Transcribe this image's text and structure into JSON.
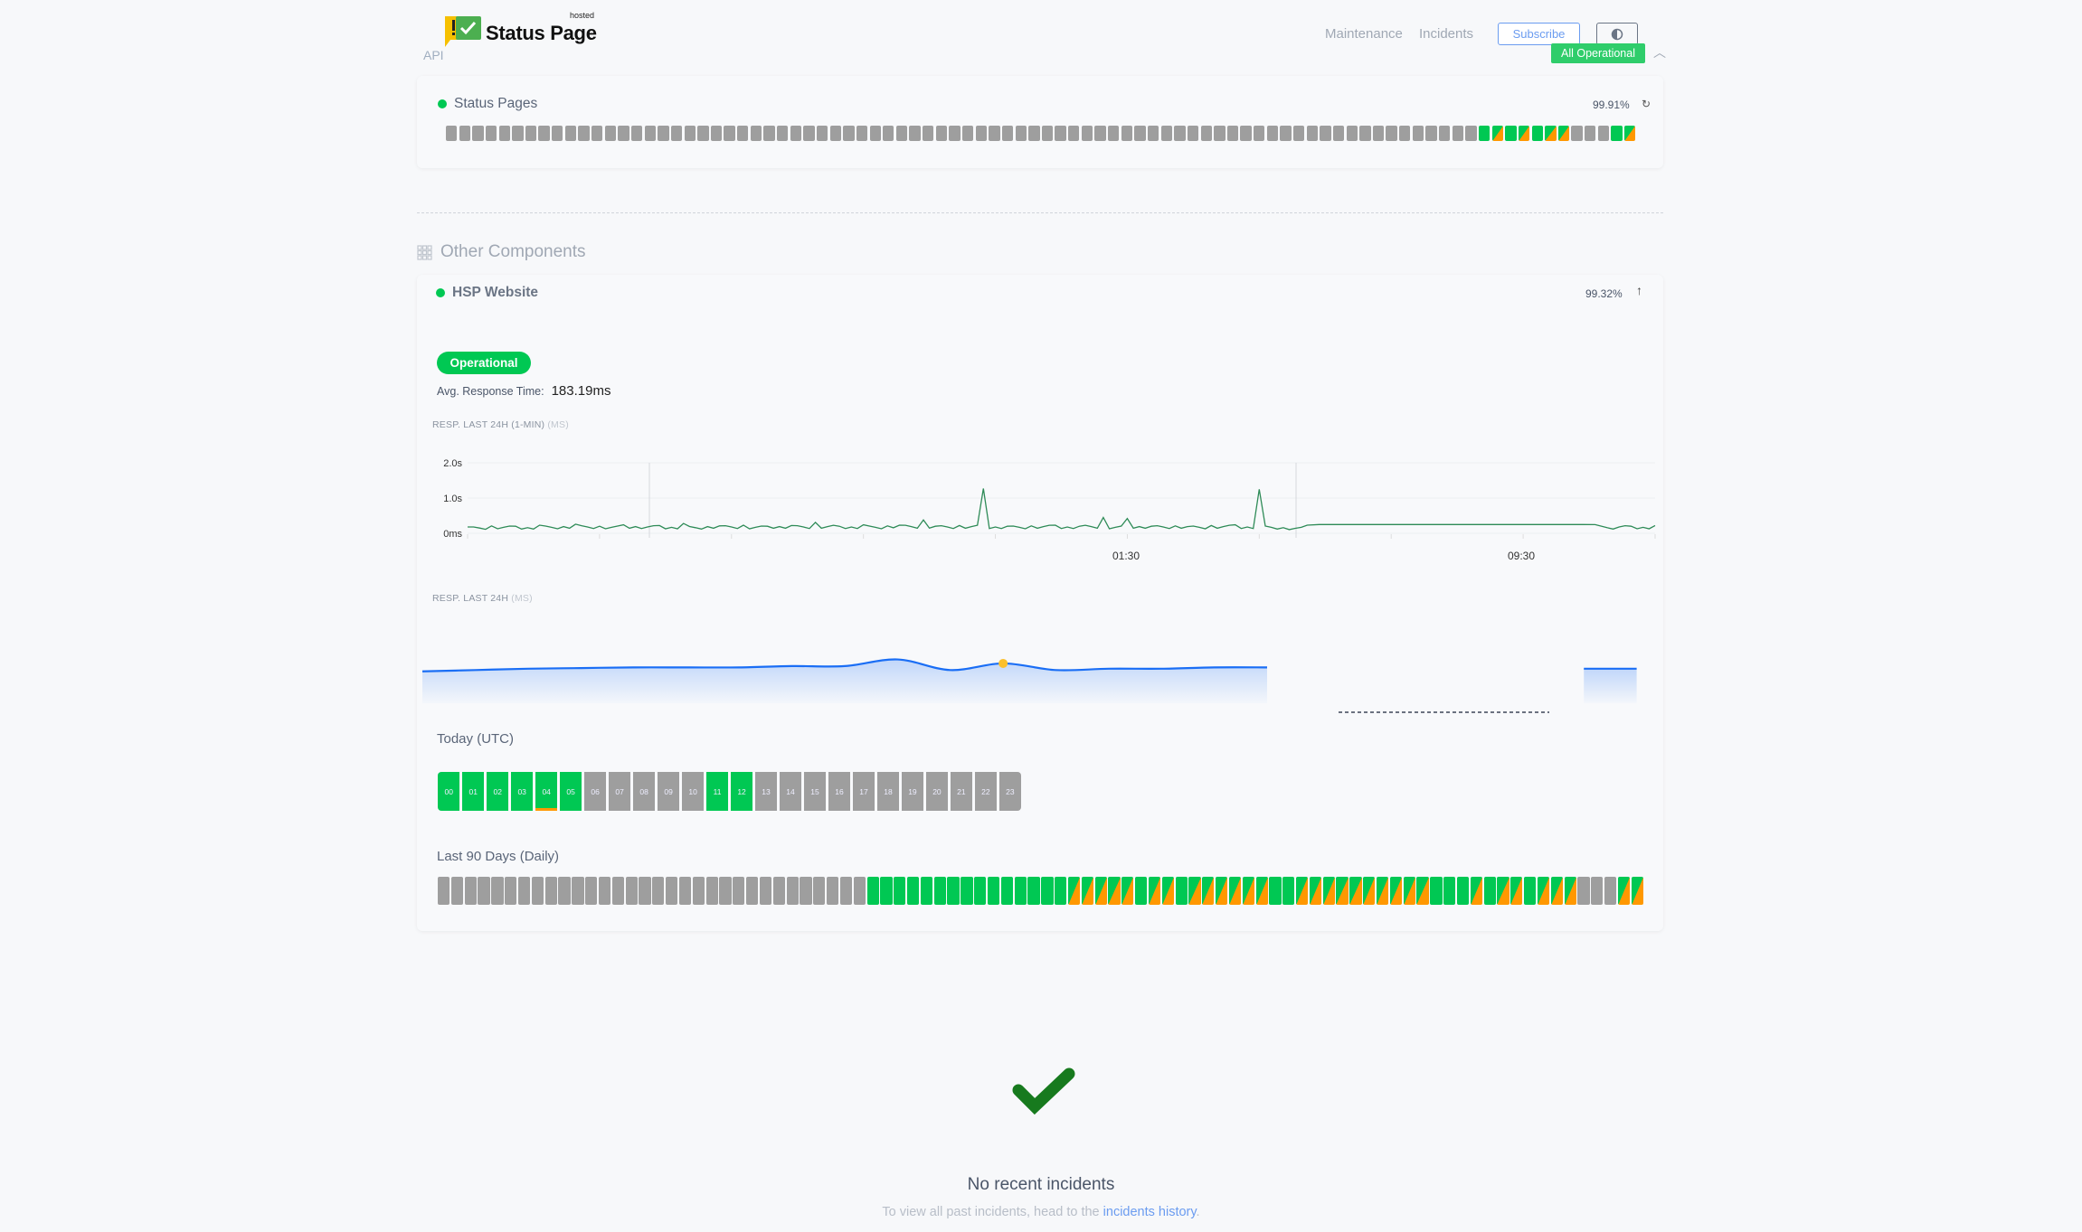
{
  "header": {
    "brand": "Status Page",
    "brand_tag": "hosted",
    "api_label": "API",
    "nav": [
      "Maintenance",
      "Incidents"
    ],
    "subscribe_label": "Subscribe",
    "theme_icon": "half-circle-contrast-icon",
    "overall_status": "All Operational",
    "collapse_icon": "chevron-up-icon"
  },
  "colors": {
    "operational": "#00c853",
    "partial": "#ff9800",
    "no_data": "#9e9e9e",
    "link": "#6b9cf0",
    "response_line": "#2e8b57",
    "sparkline": "#1a6ef5"
  },
  "status_legend": {
    "g": "operational",
    "o": "partial-outage",
    "n": "no-data"
  },
  "api_group": {
    "component": {
      "name": "Status Pages",
      "uptime": "99.91%",
      "status_icon": "refresh-icon",
      "days": [
        "n",
        "n",
        "n",
        "n",
        "n",
        "n",
        "n",
        "n",
        "n",
        "n",
        "n",
        "n",
        "n",
        "n",
        "n",
        "n",
        "n",
        "n",
        "n",
        "n",
        "n",
        "n",
        "n",
        "n",
        "n",
        "n",
        "n",
        "n",
        "n",
        "n",
        "n",
        "n",
        "n",
        "n",
        "n",
        "n",
        "n",
        "n",
        "n",
        "n",
        "n",
        "n",
        "n",
        "n",
        "n",
        "n",
        "n",
        "n",
        "n",
        "n",
        "n",
        "n",
        "n",
        "n",
        "n",
        "n",
        "n",
        "n",
        "n",
        "n",
        "n",
        "n",
        "n",
        "n",
        "n",
        "n",
        "n",
        "n",
        "n",
        "n",
        "n",
        "n",
        "n",
        "n",
        "n",
        "n",
        "n",
        "n",
        "g",
        "o",
        "g",
        "o",
        "g",
        "o",
        "o",
        "n",
        "n",
        "n",
        "g",
        "o"
      ]
    }
  },
  "other": {
    "title": "Other Components",
    "component": {
      "name": "HSP Website",
      "uptime": "99.32%",
      "expand_icon": "arrow-up-icon",
      "status": "Operational",
      "avg_label": "Avg. Response Time:",
      "avg_value": "183.19ms",
      "chart1_label": "RESP. LAST 24H (1-MIN)",
      "chart1_unit": "(MS)",
      "chart2_label": "RESP. LAST 24H",
      "chart2_unit": "(MS)",
      "today_label": "Today (UTC)",
      "hours": [
        {
          "h": "00",
          "s": "g"
        },
        {
          "h": "01",
          "s": "g"
        },
        {
          "h": "02",
          "s": "g"
        },
        {
          "h": "03",
          "s": "g"
        },
        {
          "h": "04",
          "s": "g",
          "partial": true
        },
        {
          "h": "05",
          "s": "g"
        },
        {
          "h": "06",
          "s": "n"
        },
        {
          "h": "07",
          "s": "n"
        },
        {
          "h": "08",
          "s": "n"
        },
        {
          "h": "09",
          "s": "n"
        },
        {
          "h": "10",
          "s": "n"
        },
        {
          "h": "11",
          "s": "g"
        },
        {
          "h": "12",
          "s": "g"
        },
        {
          "h": "13",
          "s": "n"
        },
        {
          "h": "14",
          "s": "n"
        },
        {
          "h": "15",
          "s": "n"
        },
        {
          "h": "16",
          "s": "n"
        },
        {
          "h": "17",
          "s": "n"
        },
        {
          "h": "18",
          "s": "n"
        },
        {
          "h": "19",
          "s": "n"
        },
        {
          "h": "20",
          "s": "n"
        },
        {
          "h": "21",
          "s": "n"
        },
        {
          "h": "22",
          "s": "n"
        },
        {
          "h": "23",
          "s": "n"
        }
      ],
      "days_label": "Last 90 Days (Daily)",
      "days": [
        "n",
        "n",
        "n",
        "n",
        "n",
        "n",
        "n",
        "n",
        "n",
        "n",
        "n",
        "n",
        "n",
        "n",
        "n",
        "n",
        "n",
        "n",
        "n",
        "n",
        "n",
        "n",
        "n",
        "n",
        "n",
        "n",
        "n",
        "n",
        "n",
        "n",
        "n",
        "n",
        "g",
        "g",
        "g",
        "g",
        "g",
        "g",
        "g",
        "g",
        "g",
        "g",
        "g",
        "g",
        "g",
        "g",
        "g",
        "o",
        "o",
        "o",
        "o",
        "o",
        "g",
        "o",
        "o",
        "g",
        "o",
        "o",
        "o",
        "o",
        "o",
        "o",
        "g",
        "g",
        "o",
        "o",
        "o",
        "o",
        "o",
        "o",
        "o",
        "o",
        "o",
        "o",
        "g",
        "g",
        "g",
        "o",
        "g",
        "o",
        "o",
        "g",
        "o",
        "o",
        "o",
        "n",
        "n",
        "n",
        "o",
        "o"
      ]
    }
  },
  "chart_data": [
    {
      "type": "line",
      "title": "RESP. LAST 24H (1-MIN) (MS)",
      "y_ticks": [
        "0ms",
        "1.0s",
        "2.0s"
      ],
      "ylim": [
        0,
        2000
      ],
      "x_ticks": [
        "01:30",
        "09:30"
      ],
      "grid": true,
      "values": [
        180,
        150,
        210,
        170,
        200,
        160,
        230,
        170,
        190,
        260,
        180,
        200,
        170,
        240,
        190,
        180,
        220,
        170,
        280,
        160,
        190,
        210,
        180,
        230,
        170,
        200,
        190,
        220,
        180,
        310,
        190,
        200,
        180,
        240,
        170,
        210,
        230,
        190,
        380,
        200,
        180,
        220,
        190,
        1270,
        180,
        200,
        170,
        210,
        190,
        230,
        180,
        200,
        190,
        450,
        170,
        420,
        190,
        200,
        180,
        210,
        190,
        170,
        220,
        190,
        240,
        180,
        1250,
        170,
        160,
        140,
        230,
        250,
        250,
        250,
        250,
        250,
        250,
        250,
        250,
        250,
        250,
        250,
        250,
        250,
        250,
        250,
        250,
        250,
        250,
        250,
        250,
        250,
        250,
        250,
        245,
        160,
        180,
        200,
        170,
        220
      ]
    },
    {
      "type": "area",
      "title": "RESP. LAST 24H (MS)",
      "grid": false,
      "values": [
        240,
        250,
        260,
        265,
        270,
        270,
        270,
        280,
        280,
        330,
        250,
        300,
        250,
        260,
        260,
        270,
        270,
        null,
        null,
        null,
        null,
        null,
        260,
        260
      ],
      "highlight_index": 11
    }
  ],
  "incidents": {
    "icon": "checkmark-icon",
    "title": "No recent incidents",
    "text": "To view all past incidents, head to the",
    "link": "incidents history",
    "suffix": "."
  }
}
